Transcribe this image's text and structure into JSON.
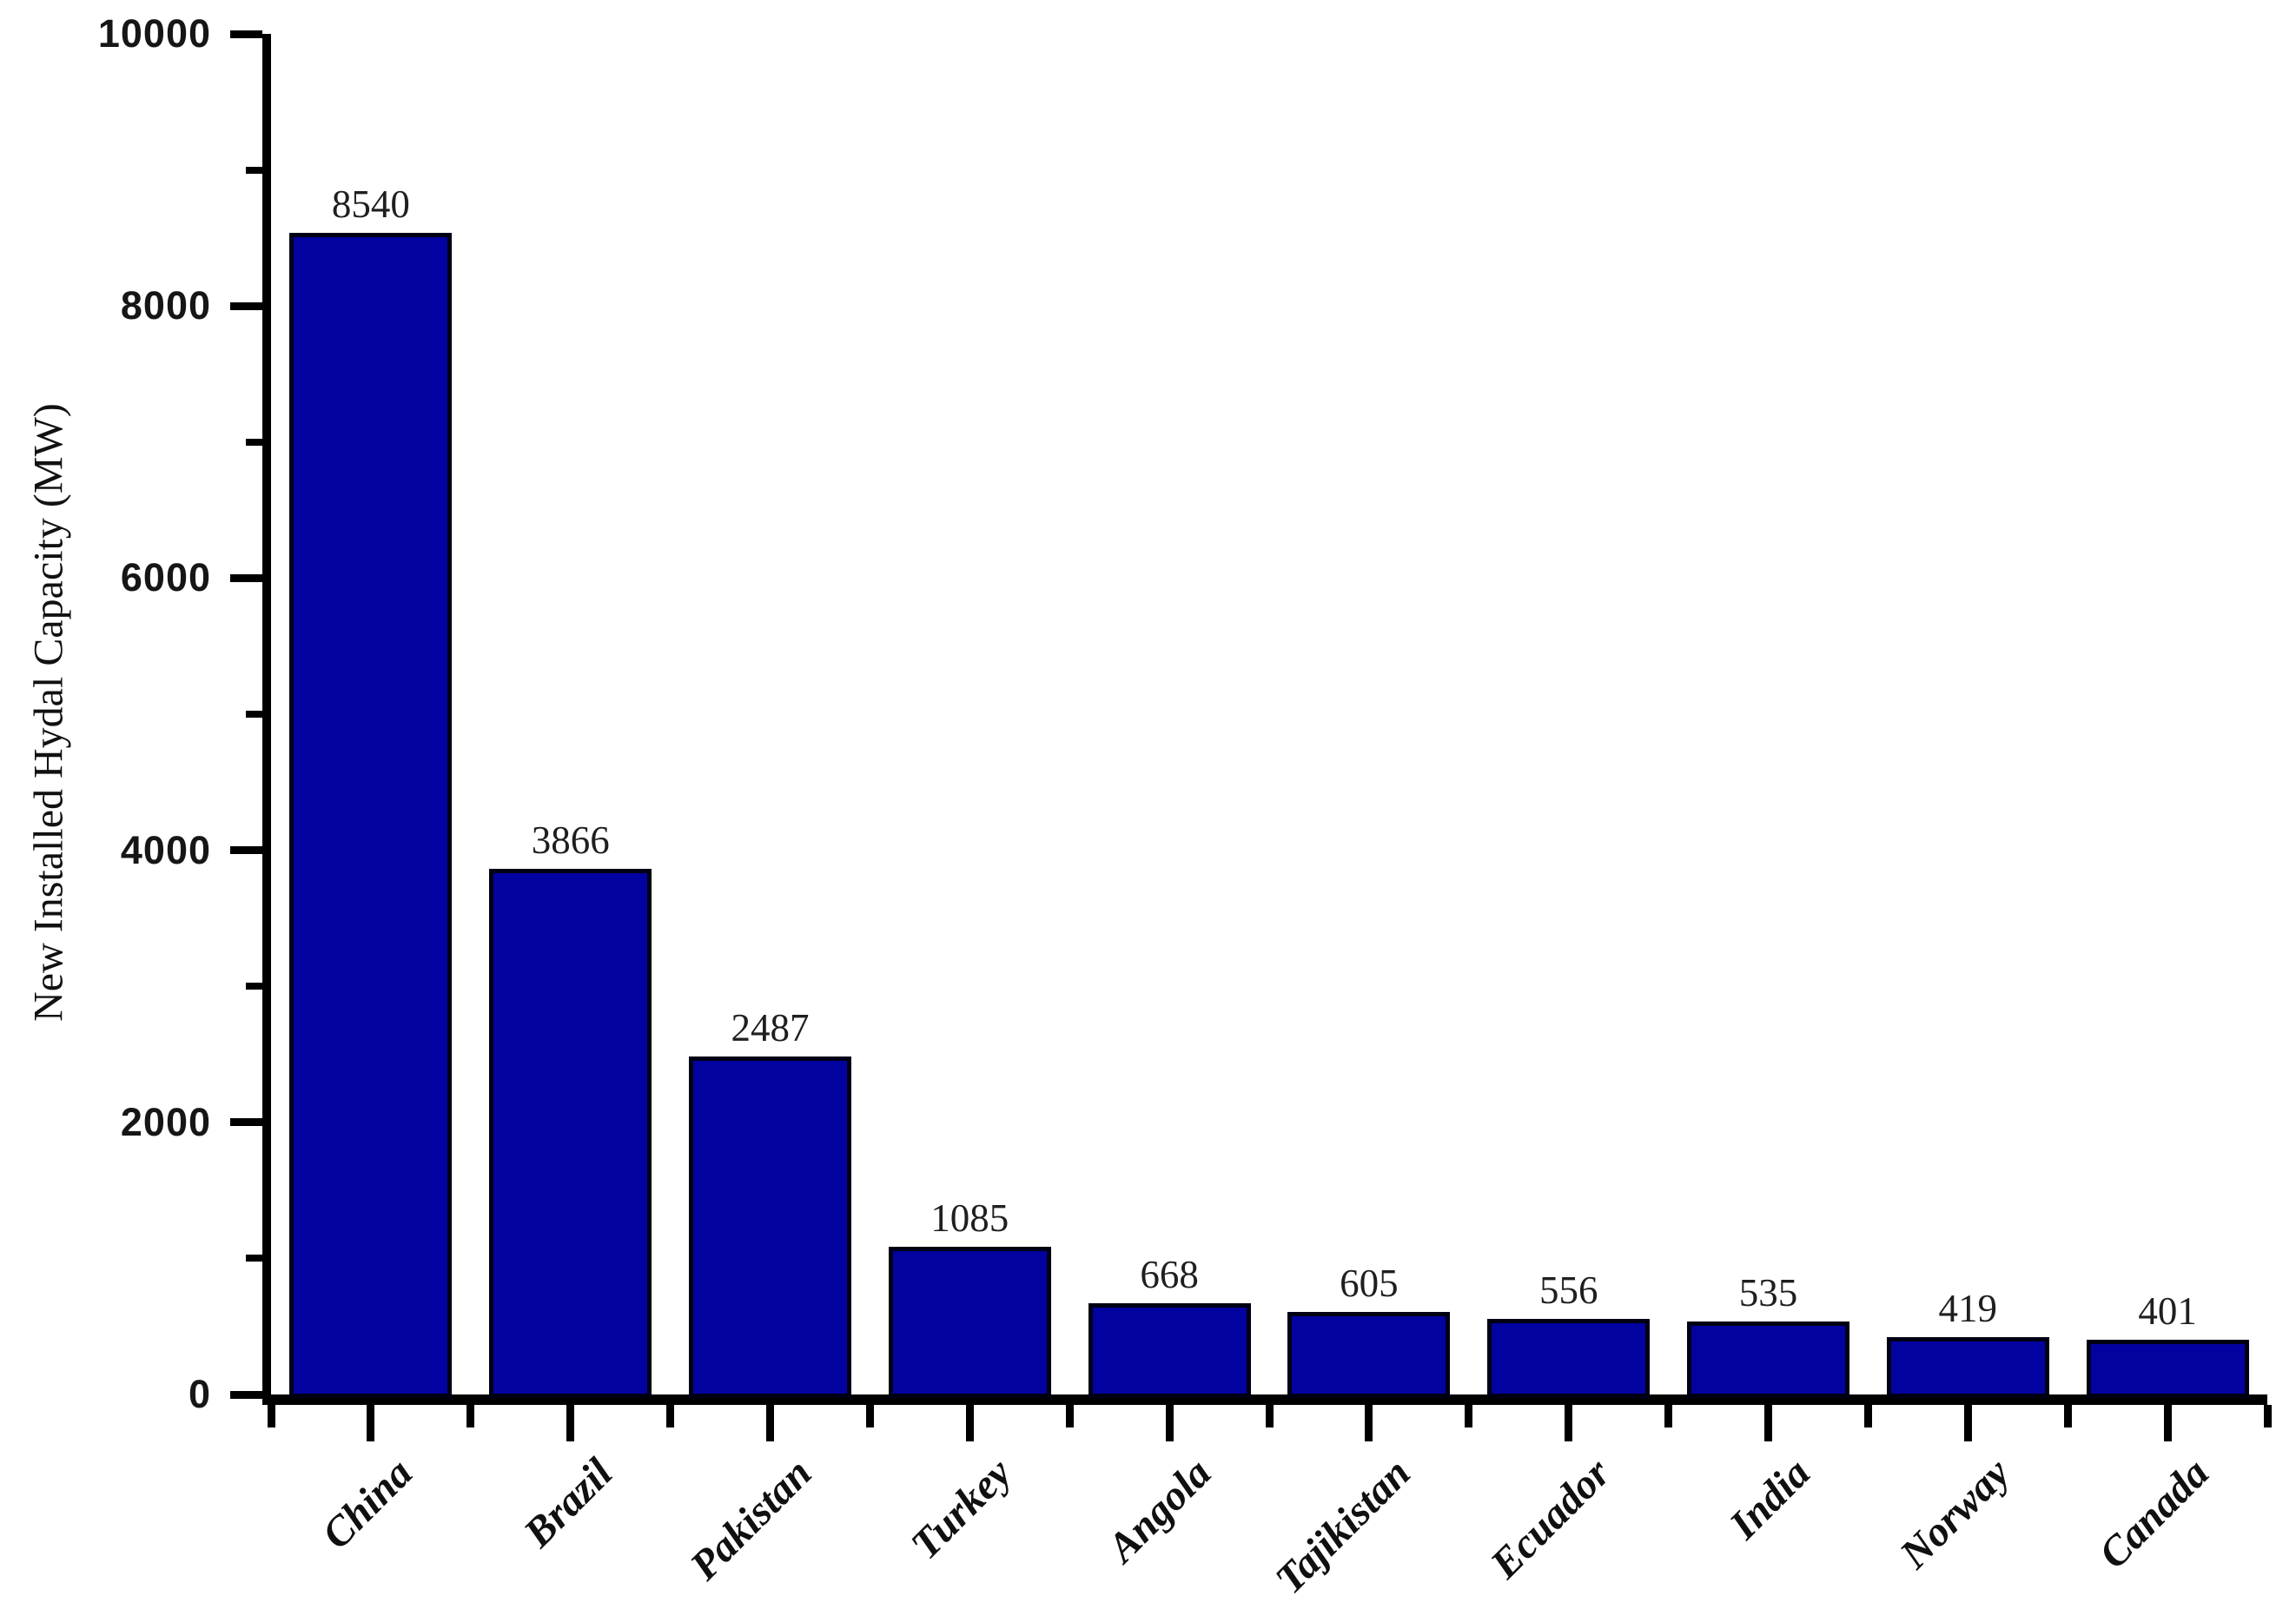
{
  "chart_data": {
    "type": "bar",
    "categories": [
      "China",
      "Brazil",
      "Pakistan",
      "Turkey",
      "Angola",
      "Tajikistan",
      "Ecuador",
      "India",
      "Norway",
      "Canada"
    ],
    "values": [
      8540,
      3866,
      2487,
      1085,
      668,
      605,
      556,
      535,
      419,
      401
    ],
    "xlabel": "",
    "ylabel": "New Installed Hydal Capacity (MW)",
    "ylim": [
      0,
      10000
    ],
    "yticks_major": [
      0,
      2000,
      4000,
      6000,
      8000,
      10000
    ],
    "yticks_minor": [
      1000,
      3000,
      5000,
      7000,
      9000
    ],
    "grid": false,
    "legend_position": "none",
    "bar_labels_shown": true,
    "colors": {
      "bar_fill": "#0202A0",
      "bar_border": "#000014",
      "axis": "#000000",
      "tick_label": "#161616",
      "value_label": "#1f1f1f",
      "category_label": "#101010",
      "background": "#ffffff"
    }
  }
}
